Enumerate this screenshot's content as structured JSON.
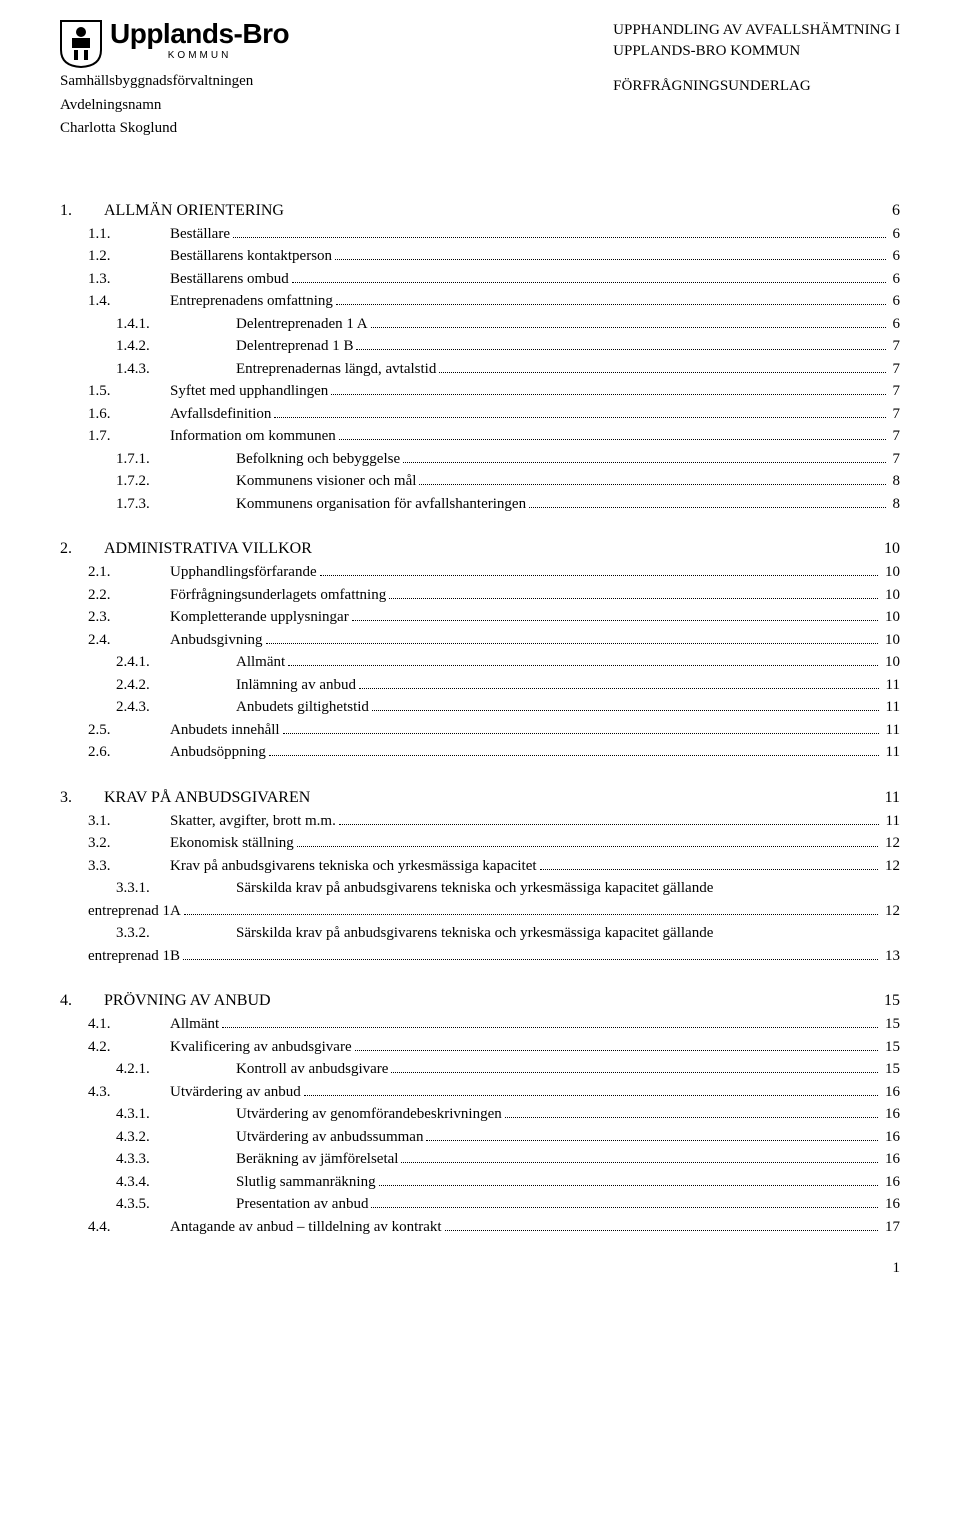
{
  "header": {
    "org_name": "Upplands-Bro",
    "org_sub": "KOMMUN",
    "dept1": "Samhällsbyggnadsförvaltningen",
    "dept2": "Avdelningsnamn",
    "person": "Charlotta Skoglund",
    "right1": "UPPHANDLING AV AVFALLSHÄMTNING I",
    "right2": "UPPLANDS-BRO KOMMUN",
    "right3": "FÖRFRÅGNINGSUNDERLAG"
  },
  "sections": [
    {
      "num": "1.",
      "label": "ALLMÄN ORIENTERING",
      "page": "6",
      "items": [
        {
          "num": "1.1.",
          "label": "Beställare",
          "page": "6",
          "level": 2
        },
        {
          "num": "1.2.",
          "label": "Beställarens kontaktperson",
          "page": "6",
          "level": 2
        },
        {
          "num": "1.3.",
          "label": "Beställarens ombud",
          "page": "6",
          "level": 2
        },
        {
          "num": "1.4.",
          "label": "Entreprenadens omfattning",
          "page": "6",
          "level": 2
        },
        {
          "num": "1.4.1.",
          "label": "Delentreprenaden 1 A",
          "page": "6",
          "level": 3
        },
        {
          "num": "1.4.2.",
          "label": "Delentreprenad 1 B",
          "page": "7",
          "level": 3
        },
        {
          "num": "1.4.3.",
          "label": "Entreprenadernas längd, avtalstid",
          "page": "7",
          "level": 3
        },
        {
          "num": "1.5.",
          "label": "Syftet med upphandlingen",
          "page": "7",
          "level": 2
        },
        {
          "num": "1.6.",
          "label": "Avfallsdefinition",
          "page": "7",
          "level": 2
        },
        {
          "num": "1.7.",
          "label": "Information om kommunen",
          "page": "7",
          "level": 2
        },
        {
          "num": "1.7.1.",
          "label": "Befolkning och bebyggelse",
          "page": "7",
          "level": 3
        },
        {
          "num": "1.7.2.",
          "label": "Kommunens visioner och mål",
          "page": "8",
          "level": 3
        },
        {
          "num": "1.7.3.",
          "label": "Kommunens organisation för avfallshanteringen",
          "page": "8",
          "level": 3
        }
      ]
    },
    {
      "num": "2.",
      "label": "ADMINISTRATIVA VILLKOR",
      "page": "10",
      "items": [
        {
          "num": "2.1.",
          "label": "Upphandlingsförfarande",
          "page": "10",
          "level": 2
        },
        {
          "num": "2.2.",
          "label": "Förfrågningsunderlagets omfattning",
          "page": "10",
          "level": 2
        },
        {
          "num": "2.3.",
          "label": "Kompletterande upplysningar",
          "page": "10",
          "level": 2
        },
        {
          "num": "2.4.",
          "label": "Anbudsgivning",
          "page": "10",
          "level": 2
        },
        {
          "num": "2.4.1.",
          "label": "Allmänt",
          "page": "10",
          "level": 3
        },
        {
          "num": "2.4.2.",
          "label": "Inlämning av anbud",
          "page": "11",
          "level": 3
        },
        {
          "num": "2.4.3.",
          "label": "Anbudets giltighetstid",
          "page": "11",
          "level": 3
        },
        {
          "num": "2.5.",
          "label": "Anbudets innehåll",
          "page": "11",
          "level": 2
        },
        {
          "num": "2.6.",
          "label": "Anbudsöppning",
          "page": "11",
          "level": 2
        }
      ]
    },
    {
      "num": "3.",
      "label": "KRAV PÅ ANBUDSGIVAREN",
      "page": "11",
      "items": [
        {
          "num": "3.1.",
          "label": "Skatter, avgifter, brott m.m.",
          "page": "11",
          "level": 2
        },
        {
          "num": "3.2.",
          "label": "Ekonomisk ställning",
          "page": "12",
          "level": 2
        },
        {
          "num": "3.3.",
          "label": "Krav på anbudsgivarens tekniska och yrkesmässiga kapacitet",
          "page": "12",
          "level": 2
        },
        {
          "num": "3.3.1.",
          "label": "Särskilda krav på anbudsgivarens tekniska och yrkesmässiga kapacitet gällande",
          "label2": "entreprenad 1A",
          "page": "12",
          "level": 3,
          "wrap": true
        },
        {
          "num": "3.3.2.",
          "label": "Särskilda krav på anbudsgivarens tekniska och yrkesmässiga kapacitet gällande",
          "label2": "entreprenad 1B",
          "page": "13",
          "level": 3,
          "wrap": true
        }
      ]
    },
    {
      "num": "4.",
      "label": "PRÖVNING AV ANBUD",
      "page": "15",
      "items": [
        {
          "num": "4.1.",
          "label": "Allmänt",
          "page": "15",
          "level": 2
        },
        {
          "num": "4.2.",
          "label": "Kvalificering av anbudsgivare",
          "page": "15",
          "level": 2
        },
        {
          "num": "4.2.1.",
          "label": "Kontroll av anbudsgivare",
          "page": "15",
          "level": 3
        },
        {
          "num": "4.3.",
          "label": "Utvärdering av anbud",
          "page": "16",
          "level": 2
        },
        {
          "num": "4.3.1.",
          "label": "Utvärdering av genomförandebeskrivningen",
          "page": "16",
          "level": 3
        },
        {
          "num": "4.3.2.",
          "label": "Utvärdering av anbudssumman",
          "page": "16",
          "level": 3
        },
        {
          "num": "4.3.3.",
          "label": "Beräkning av jämförelsetal",
          "page": "16",
          "level": 3
        },
        {
          "num": "4.3.4.",
          "label": "Slutlig sammanräkning",
          "page": "16",
          "level": 3
        },
        {
          "num": "4.3.5.",
          "label": "Presentation av anbud",
          "page": "16",
          "level": 3
        },
        {
          "num": "4.4.",
          "label": "Antagande av anbud – tilldelning av kontrakt",
          "page": "17",
          "level": 2
        }
      ]
    }
  ],
  "footer": {
    "page": "1"
  }
}
